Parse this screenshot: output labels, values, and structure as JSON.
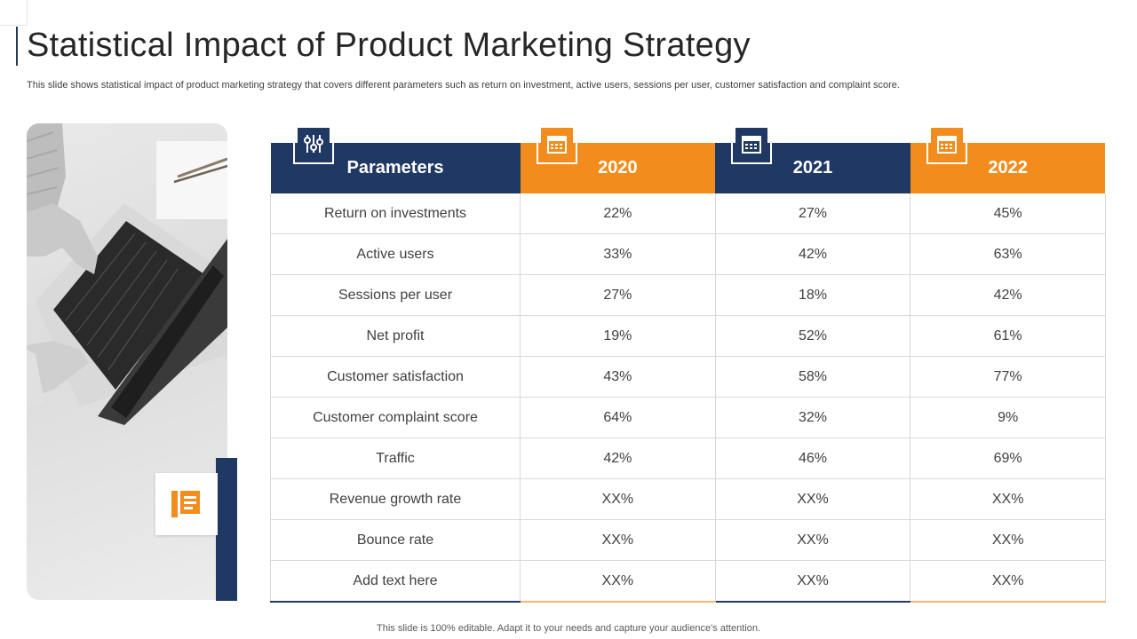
{
  "title": "Statistical Impact of Product Marketing Strategy",
  "subtitle": "This slide shows statistical impact of product marketing strategy that covers different parameters such as return on investment, active users, sessions per user, customer satisfaction and complaint score.",
  "footer": "This slide is 100% editable. Adapt it to your needs and capture your audience's attention.",
  "colors": {
    "navy": "#1f3864",
    "orange": "#f28c1c"
  },
  "photo": {
    "icon": "book-icon"
  },
  "table": {
    "header": {
      "parameters": "Parameters",
      "y2020": "2020",
      "y2021": "2021",
      "y2022": "2022",
      "icons": [
        "sliders-icon",
        "calendar-icon",
        "calendar-icon",
        "calendar-icon"
      ]
    },
    "rows": [
      {
        "param": "Return  on investments",
        "v2020": "22%",
        "v2021": "27%",
        "v2022": "45%"
      },
      {
        "param": "Active users",
        "v2020": "33%",
        "v2021": "42%",
        "v2022": "63%"
      },
      {
        "param": "Sessions per user",
        "v2020": "27%",
        "v2021": "18%",
        "v2022": "42%"
      },
      {
        "param": "Net profit",
        "v2020": "19%",
        "v2021": "52%",
        "v2022": "61%"
      },
      {
        "param": "Customer satisfaction",
        "v2020": "43%",
        "v2021": "58%",
        "v2022": "77%"
      },
      {
        "param": "Customer complaint score",
        "v2020": "64%",
        "v2021": "32%",
        "v2022": "9%"
      },
      {
        "param": "Traffic",
        "v2020": "42%",
        "v2021": "46%",
        "v2022": "69%"
      },
      {
        "param": "Revenue  growth rate",
        "v2020": "XX%",
        "v2021": "XX%",
        "v2022": "XX%"
      },
      {
        "param": "Bounce rate",
        "v2020": "XX%",
        "v2021": "XX%",
        "v2022": "XX%"
      },
      {
        "param": "Add text here",
        "v2020": "XX%",
        "v2021": "XX%",
        "v2022": "XX%"
      }
    ]
  }
}
